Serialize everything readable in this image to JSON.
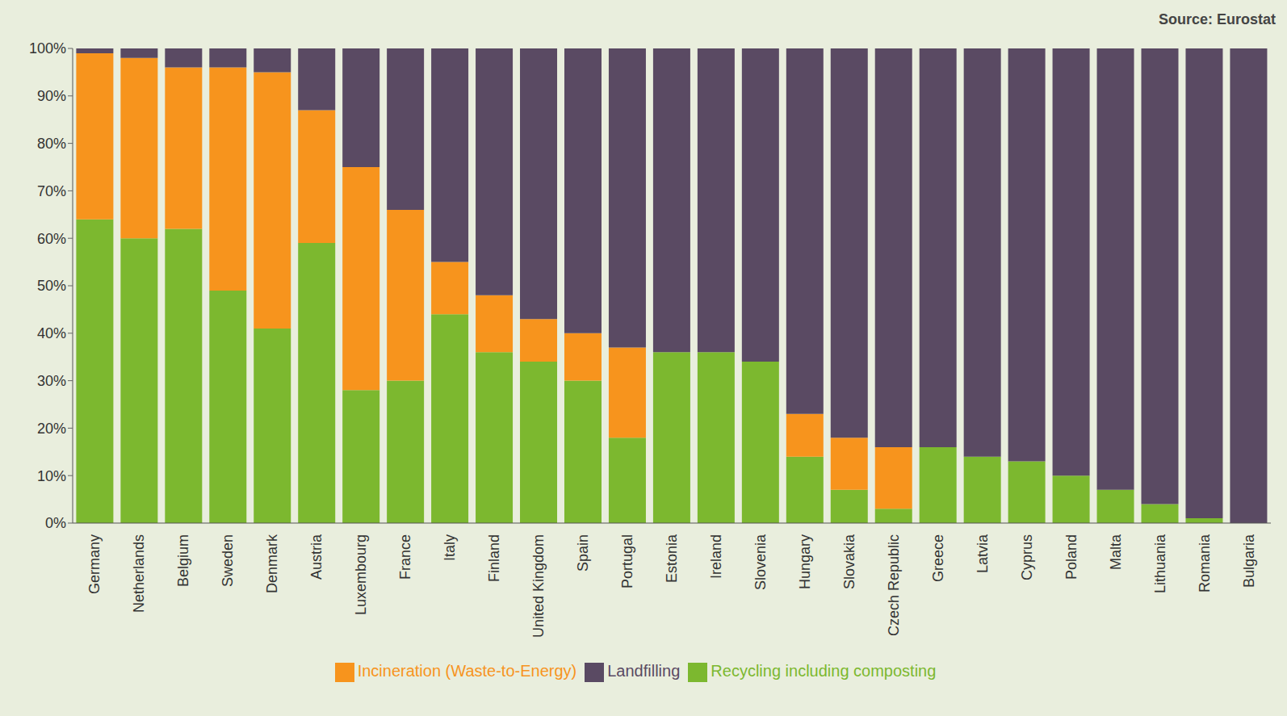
{
  "chart_data": {
    "type": "bar",
    "stacked": true,
    "source": "Source: Eurostat",
    "categories": [
      "Germany",
      "Netherlands",
      "Belgium",
      "Sweden",
      "Denmark",
      "Austria",
      "Luxembourg",
      "France",
      "Italy",
      "Finland",
      "United Kingdom",
      "Spain",
      "Portugal",
      "Estonia",
      "Ireland",
      "Slovenia",
      "Hungary",
      "Slovakia",
      "Czech Republic",
      "Greece",
      "Latvia",
      "Cyprus",
      "Poland",
      "Malta",
      "Lithuania",
      "Romania",
      "Bulgaria"
    ],
    "series": [
      {
        "name": "Recycling including composting",
        "color": "#7cb82f",
        "values": [
          64,
          60,
          62,
          49,
          41,
          59,
          28,
          30,
          44,
          36,
          34,
          30,
          18,
          36,
          36,
          34,
          14,
          7,
          3,
          16,
          14,
          13,
          10,
          7,
          4,
          1,
          0
        ]
      },
      {
        "name": "Incineration (Waste-to-Energy)",
        "color": "#f7941d",
        "values": [
          35,
          38,
          34,
          47,
          54,
          28,
          47,
          36,
          11,
          12,
          9,
          10,
          19,
          0,
          0,
          0,
          9,
          11,
          13,
          0,
          0,
          0,
          0,
          0,
          0,
          0,
          0
        ]
      },
      {
        "name": "Landfilling",
        "color": "#5a4a63",
        "values": [
          1,
          2,
          4,
          4,
          5,
          13,
          25,
          34,
          45,
          52,
          57,
          60,
          63,
          64,
          64,
          66,
          77,
          82,
          84,
          84,
          86,
          87,
          90,
          93,
          96,
          99,
          100
        ]
      }
    ],
    "ylim": [
      0,
      100
    ],
    "yticks": [
      {
        "value": 0,
        "label": "0%"
      },
      {
        "value": 10,
        "label": "10%"
      },
      {
        "value": 20,
        "label": "20%"
      },
      {
        "value": 30,
        "label": "30%"
      },
      {
        "value": 40,
        "label": "40%"
      },
      {
        "value": 50,
        "label": "50%"
      },
      {
        "value": 60,
        "label": "60%"
      },
      {
        "value": 70,
        "label": "70%"
      },
      {
        "value": 80,
        "label": "80%"
      },
      {
        "value": 90,
        "label": "90%"
      },
      {
        "value": 100,
        "label": "100%"
      }
    ],
    "grid": false,
    "legend": "bottom"
  }
}
